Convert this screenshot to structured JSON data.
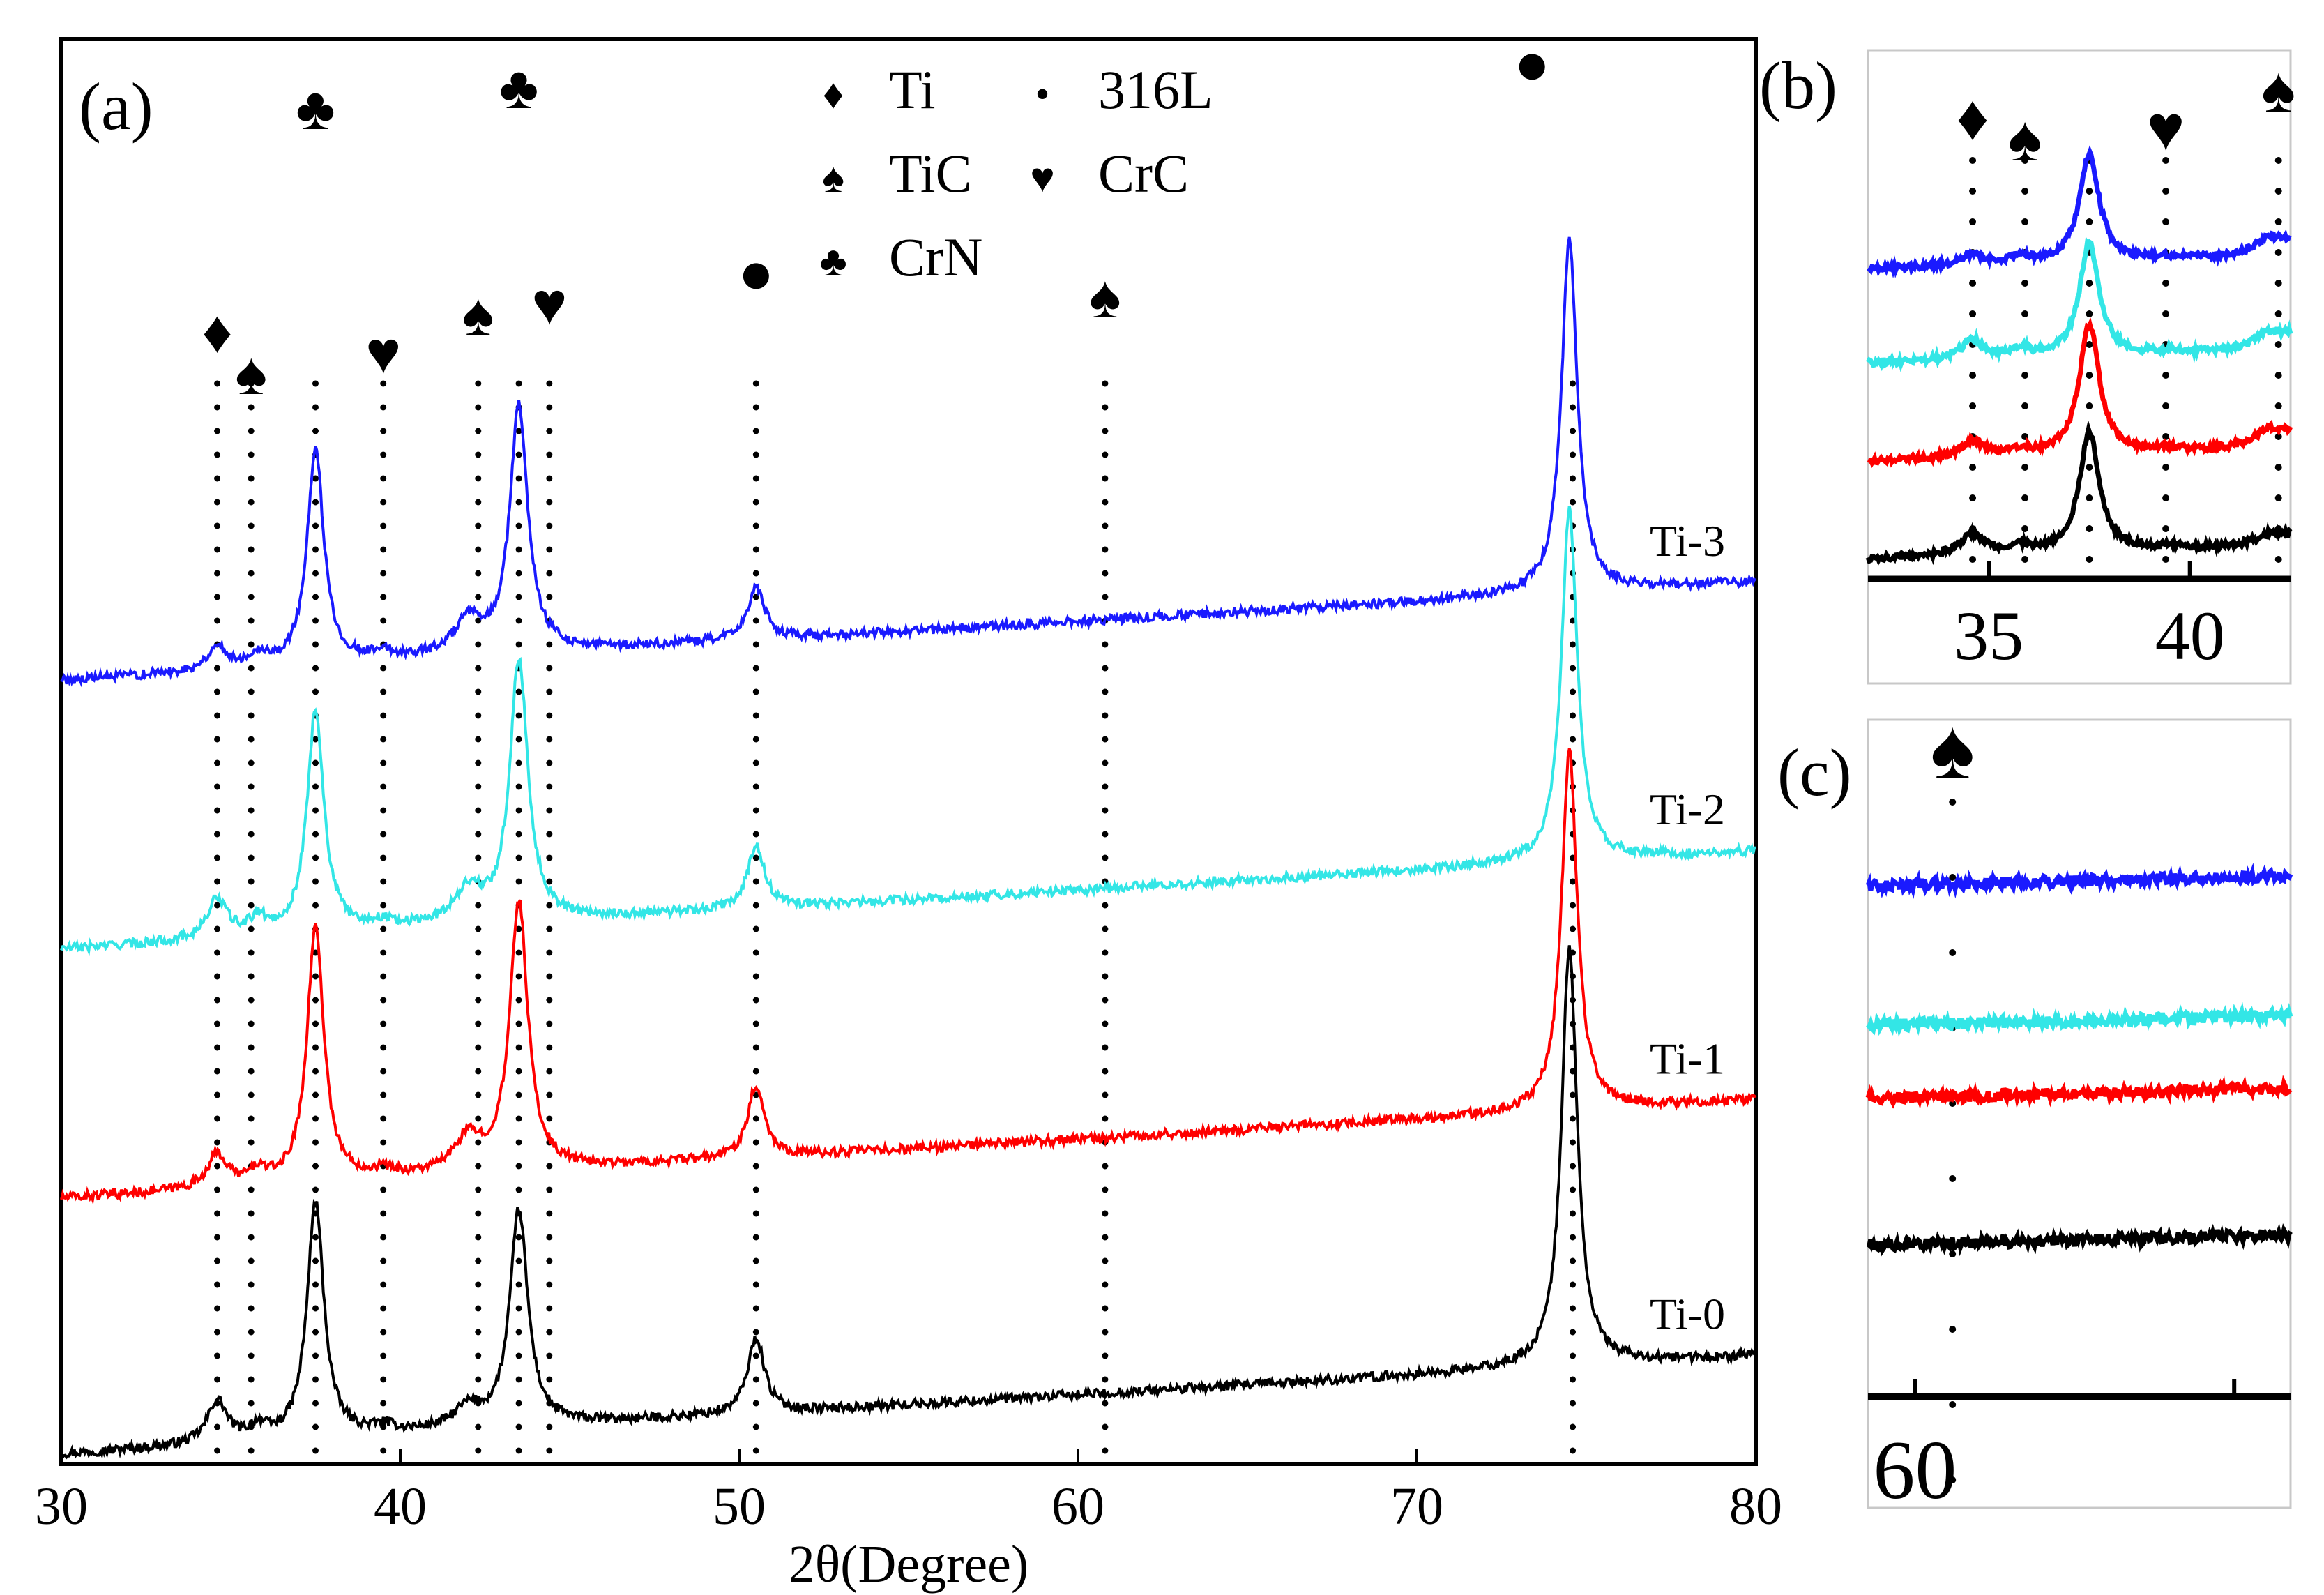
{
  "chart_data": [
    {
      "panel": "(a)",
      "type": "line",
      "title": "",
      "xlabel": "2θ(Degree)",
      "ylabel": "",
      "xlim": [
        30,
        80
      ],
      "xticks": [
        30,
        40,
        50,
        60,
        70,
        80
      ],
      "grid": false,
      "series": [
        {
          "name": "Ti-0",
          "color": "#000000",
          "offset": 0.0,
          "baseline": [
            [
              30,
              0.0
            ],
            [
              80,
              0.3
            ]
          ],
          "peaks": [
            [
              34.6,
              0.13,
              0.35
            ],
            [
              35.8,
              0.04,
              0.3
            ],
            [
              37.5,
              0.72,
              0.3
            ],
            [
              39.5,
              0.02,
              0.4
            ],
            [
              42.0,
              0.06,
              0.5
            ],
            [
              43.5,
              0.66,
              0.32
            ],
            [
              50.5,
              0.23,
              0.3
            ],
            [
              74.5,
              1.28,
              0.28
            ]
          ]
        },
        {
          "name": "Ti-1",
          "color": "#ff0000",
          "offset": 0.78,
          "baseline": [
            [
              30,
              0.0
            ],
            [
              80,
              0.3
            ]
          ],
          "peaks": [
            [
              34.6,
              0.1,
              0.35
            ],
            [
              35.8,
              0.04,
              0.3
            ],
            [
              37.5,
              0.78,
              0.3
            ],
            [
              39.5,
              0.02,
              0.4
            ],
            [
              42.0,
              0.1,
              0.5
            ],
            [
              43.5,
              0.82,
              0.32
            ],
            [
              50.5,
              0.22,
              0.3
            ],
            [
              74.5,
              1.1,
              0.28
            ]
          ]
        },
        {
          "name": "Ti-2",
          "color": "#33e6e6",
          "offset": 1.54,
          "baseline": [
            [
              30,
              0.0
            ],
            [
              80,
              0.3
            ]
          ],
          "peaks": [
            [
              34.6,
              0.12,
              0.35
            ],
            [
              35.8,
              0.05,
              0.3
            ],
            [
              37.5,
              0.68,
              0.3
            ],
            [
              39.5,
              0.02,
              0.4
            ],
            [
              42.0,
              0.1,
              0.5
            ],
            [
              43.5,
              0.8,
              0.32
            ],
            [
              50.5,
              0.19,
              0.3
            ],
            [
              74.5,
              1.08,
              0.28
            ]
          ]
        },
        {
          "name": "Ti-3",
          "color": "#1a1aff",
          "offset": 2.36,
          "baseline": [
            [
              30,
              0.0
            ],
            [
              80,
              0.3
            ]
          ],
          "peaks": [
            [
              34.6,
              0.07,
              0.35
            ],
            [
              35.8,
              0.04,
              0.3
            ],
            [
              37.5,
              0.65,
              0.3
            ],
            [
              39.5,
              0.02,
              0.4
            ],
            [
              42.0,
              0.1,
              0.5
            ],
            [
              43.5,
              0.75,
              0.32
            ],
            [
              50.5,
              0.16,
              0.3
            ],
            [
              74.5,
              1.08,
              0.28
            ]
          ]
        }
      ],
      "reference_lines": [
        34.6,
        35.6,
        37.5,
        39.5,
        42.3,
        43.5,
        44.4,
        50.5,
        60.8,
        74.6
      ],
      "peak_markers": [
        {
          "x": 34.6,
          "symbol": "♦",
          "phase": "Ti"
        },
        {
          "x": 35.6,
          "symbol": "♠",
          "phase": "TiC"
        },
        {
          "x": 37.5,
          "symbol": "♣",
          "phase": "CrN"
        },
        {
          "x": 39.5,
          "symbol": "♥",
          "phase": "CrC"
        },
        {
          "x": 42.3,
          "symbol": "♠",
          "phase": "TiC"
        },
        {
          "x": 43.5,
          "symbol": "♣",
          "phase": "CrN"
        },
        {
          "x": 44.4,
          "symbol": "♥",
          "phase": "CrC"
        },
        {
          "x": 50.5,
          "symbol": "●",
          "phase": "316L"
        },
        {
          "x": 60.8,
          "symbol": "♠",
          "phase": "TiC"
        },
        {
          "x": 73.4,
          "symbol": "●",
          "phase": "316L"
        }
      ],
      "legend": [
        {
          "symbol": "♦",
          "label": "Ti"
        },
        {
          "symbol": "•",
          "label": "316L"
        },
        {
          "symbol": "♠",
          "label": "TiC"
        },
        {
          "symbol": "♥",
          "label": "CrC"
        },
        {
          "symbol": "♣",
          "label": "CrN"
        }
      ],
      "legend_position": "top-center"
    },
    {
      "panel": "(b)",
      "type": "line",
      "title": "",
      "xlabel": "",
      "xlim": [
        32.0,
        42.5
      ],
      "xticks": [
        35,
        40
      ],
      "series_order": [
        "Ti-0",
        "Ti-1",
        "Ti-2",
        "Ti-3"
      ],
      "peak_markers": [
        {
          "x": 34.6,
          "symbol": "♦"
        },
        {
          "x": 35.9,
          "symbol": "♠"
        },
        {
          "x": 39.4,
          "symbol": "♥"
        },
        {
          "x": 42.2,
          "symbol": "♠"
        }
      ]
    },
    {
      "panel": "(c)",
      "type": "line",
      "title": "",
      "xlabel": "",
      "xlim": [
        59.0,
        68.0
      ],
      "xticks": [
        60
      ],
      "series_order": [
        "Ti-0",
        "Ti-1",
        "Ti-2",
        "Ti-3"
      ],
      "peak_markers": [
        {
          "x": 60.8,
          "symbol": "♠"
        }
      ]
    }
  ]
}
